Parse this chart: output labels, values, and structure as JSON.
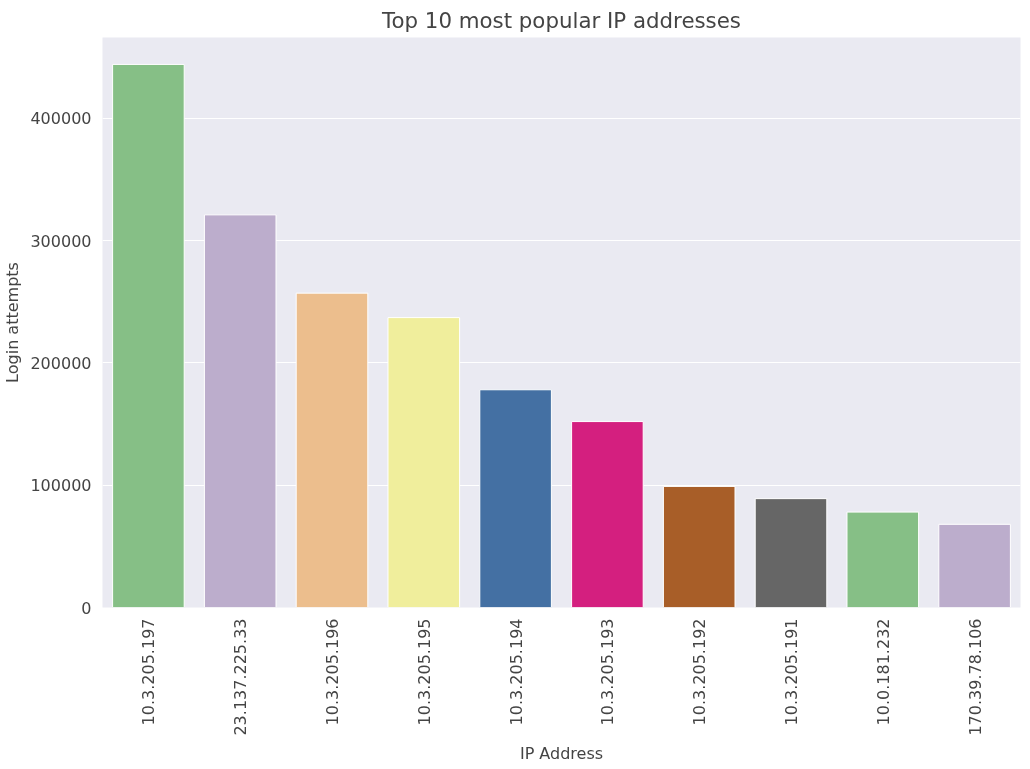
{
  "chart_data": {
    "type": "bar",
    "title": "Top 10 most popular IP addresses",
    "xlabel": "IP Address",
    "ylabel": "Login attempts",
    "categories": [
      "10.3.205.197",
      "23.137.225.33",
      "10.3.205.196",
      "10.3.205.195",
      "10.3.205.194",
      "10.3.205.193",
      "10.3.205.192",
      "10.3.205.191",
      "10.0.181.232",
      "170.39.78.106"
    ],
    "values": [
      444000,
      321000,
      257000,
      237000,
      178000,
      152000,
      99000,
      89000,
      78000,
      68000
    ],
    "colors": [
      "#86bf86",
      "#bcadcc",
      "#ecbe8d",
      "#f0ee9c",
      "#4470a3",
      "#d41f7f",
      "#a85e28",
      "#666666",
      "#86bf86",
      "#bcadcc"
    ],
    "ylim": [
      0,
      466000
    ],
    "yticks": [
      0,
      100000,
      200000,
      300000,
      400000
    ],
    "grid": "y"
  }
}
